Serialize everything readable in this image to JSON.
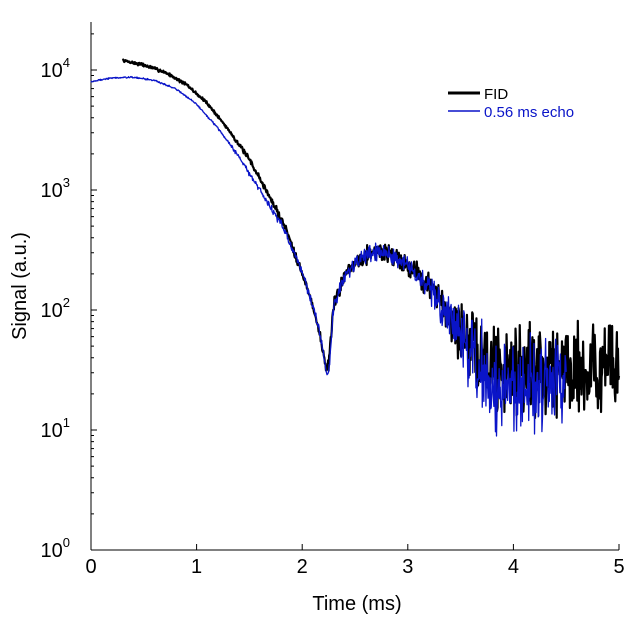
{
  "chart_data": {
    "type": "line",
    "title": "",
    "xlabel": "Time (ms)",
    "ylabel": "Signal (a.u.)",
    "xlim": [
      0,
      5
    ],
    "ylim_log10": [
      0,
      4.4
    ],
    "yscale": "log",
    "grid": false,
    "legend_position": "top-right",
    "xticks": [
      {
        "value": 0,
        "label": "0"
      },
      {
        "value": 1,
        "label": "1"
      },
      {
        "value": 2,
        "label": "2"
      },
      {
        "value": 3,
        "label": "3"
      },
      {
        "value": 4,
        "label": "4"
      },
      {
        "value": 5,
        "label": "5"
      }
    ],
    "yticks": [
      {
        "exp": 0,
        "base": "10",
        "sup": "0"
      },
      {
        "exp": 1,
        "base": "10",
        "sup": "1"
      },
      {
        "exp": 2,
        "base": "10",
        "sup": "2"
      },
      {
        "exp": 3,
        "base": "10",
        "sup": "3"
      },
      {
        "exp": 4,
        "base": "10",
        "sup": "4"
      }
    ],
    "series": [
      {
        "name": "FID",
        "color": "#000000",
        "noise_seed": 7,
        "x": [
          0.3,
          0.5,
          0.7,
          0.9,
          1.1,
          1.3,
          1.5,
          1.7,
          1.85,
          2.0,
          2.1,
          2.15,
          2.2,
          2.23,
          2.26,
          2.3,
          2.4,
          2.5,
          2.6,
          2.7,
          2.8,
          2.9,
          3.0,
          3.1,
          3.2,
          3.3,
          3.4,
          3.5,
          3.6,
          3.7,
          3.8,
          3.9,
          4.0,
          4.2,
          4.4,
          4.6,
          4.8,
          5.0
        ],
        "y": [
          12000,
          11000,
          9600,
          7600,
          5300,
          3200,
          1800,
          850,
          470,
          200,
          110,
          72,
          45,
          30,
          40,
          110,
          200,
          250,
          290,
          310,
          300,
          275,
          240,
          200,
          160,
          120,
          90,
          65,
          48,
          40,
          35,
          34,
          33,
          33,
          33,
          33,
          33,
          33
        ],
        "noise": [
          0.01,
          0.01,
          0.01,
          0.01,
          0.01,
          0.01,
          0.015,
          0.02,
          0.03,
          0.03,
          0.03,
          0.03,
          0.03,
          0.03,
          0.05,
          0.05,
          0.05,
          0.05,
          0.06,
          0.06,
          0.06,
          0.06,
          0.07,
          0.08,
          0.1,
          0.12,
          0.15,
          0.18,
          0.22,
          0.26,
          0.28,
          0.3,
          0.3,
          0.3,
          0.3,
          0.3,
          0.3,
          0.3
        ]
      },
      {
        "name": "0.56 ms echo",
        "color": "#0a14c8",
        "noise_seed": 19,
        "x": [
          0.0,
          0.2,
          0.4,
          0.6,
          0.8,
          1.0,
          1.2,
          1.4,
          1.6,
          1.8,
          2.0,
          2.1,
          2.15,
          2.2,
          2.23,
          2.26,
          2.3,
          2.4,
          2.5,
          2.6,
          2.7,
          2.8,
          2.9,
          3.0,
          3.1,
          3.2,
          3.3,
          3.4,
          3.5,
          3.6,
          3.7,
          3.8,
          3.9,
          4.0,
          4.2,
          4.4,
          4.5
        ],
        "y": [
          8000,
          8600,
          8700,
          8200,
          7000,
          5200,
          3300,
          1900,
          1000,
          520,
          210,
          110,
          75,
          45,
          28,
          35,
          110,
          190,
          240,
          280,
          300,
          290,
          265,
          235,
          195,
          150,
          110,
          80,
          55,
          38,
          28,
          23,
          22,
          24,
          27,
          28,
          28
        ],
        "noise": [
          0.005,
          0.005,
          0.005,
          0.005,
          0.005,
          0.005,
          0.01,
          0.015,
          0.02,
          0.025,
          0.03,
          0.03,
          0.03,
          0.03,
          0.03,
          0.05,
          0.05,
          0.05,
          0.05,
          0.06,
          0.06,
          0.06,
          0.06,
          0.07,
          0.08,
          0.1,
          0.12,
          0.15,
          0.2,
          0.26,
          0.3,
          0.32,
          0.32,
          0.3,
          0.3,
          0.3,
          0.3
        ]
      }
    ]
  }
}
